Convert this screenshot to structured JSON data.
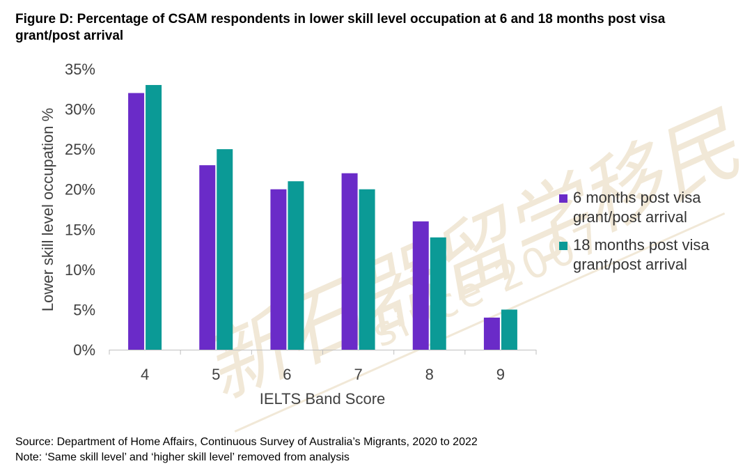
{
  "title": {
    "line1": "Figure D: Percentage of CSAM respondents in lower skill level occupation at 6 and 18 months post visa",
    "line2": "grant/post arrival"
  },
  "chart_data": {
    "type": "bar",
    "xlabel": "IELTS Band Score",
    "ylabel": "Lower skill level occupation %",
    "categories": [
      "4",
      "5",
      "6",
      "7",
      "8",
      "9"
    ],
    "ylim": [
      0,
      35
    ],
    "yticks": [
      0,
      5,
      10,
      15,
      20,
      25,
      30,
      35
    ],
    "ytick_labels": [
      "0%",
      "5%",
      "10%",
      "15%",
      "20%",
      "25%",
      "30%",
      "35%"
    ],
    "grid": false,
    "legend_position": "right",
    "series": [
      {
        "name": "6 months post visa grant/post arrival",
        "color": "#6a2bc8",
        "values": [
          32,
          23,
          20,
          22,
          16,
          4
        ]
      },
      {
        "name": "18 months post visa grant/post arrival",
        "color": "#0b9a96",
        "values": [
          33,
          25,
          21,
          20,
          14,
          5
        ]
      }
    ]
  },
  "watermark": {
    "text": "新石器留学移民",
    "subtext": "since 2007",
    "color": "#e6d7b8"
  },
  "footer": {
    "source": "Source: Department of Home Affairs, Continuous Survey of Australia’s Migrants, 2020 to 2022",
    "note": "Note: ‘Same skill level’ and ‘higher skill level’ removed from analysis"
  }
}
